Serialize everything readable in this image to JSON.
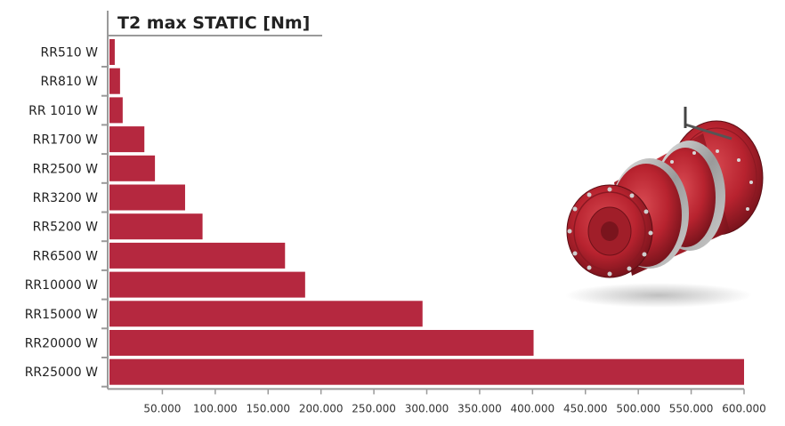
{
  "chart_data": {
    "type": "bar",
    "orientation": "horizontal",
    "title": "T2 max STATIC [Nm]",
    "categories": [
      "RR510 W",
      "RR810 W",
      "RR 1010 W",
      "RR1700 W",
      "RR2500 W",
      "RR3200  W",
      "RR5200 W",
      "RR6500 W",
      "RR10000 W",
      "RR15000 W",
      "RR20000 W",
      "RR25000 W"
    ],
    "values": [
      5000,
      10000,
      12500,
      33000,
      43000,
      71500,
      88000,
      166000,
      185000,
      296000,
      401000,
      600000
    ],
    "xlim": [
      0,
      600000
    ],
    "xticks": [
      50000,
      100000,
      150000,
      200000,
      250000,
      300000,
      350000,
      400000,
      450000,
      500000,
      550000,
      600000
    ],
    "xtick_labels": [
      "50.000",
      "100.000",
      "150.000",
      "200.000",
      "250.000",
      "300.000",
      "350.000",
      "400.000",
      "450.000",
      "500.000",
      "550.000",
      "600.000"
    ],
    "bar_color": "#b5283f",
    "axis_color": "#9a9a9a"
  },
  "product_image": {
    "name": "planetary-gearbox",
    "body_color": "#b8232f"
  }
}
